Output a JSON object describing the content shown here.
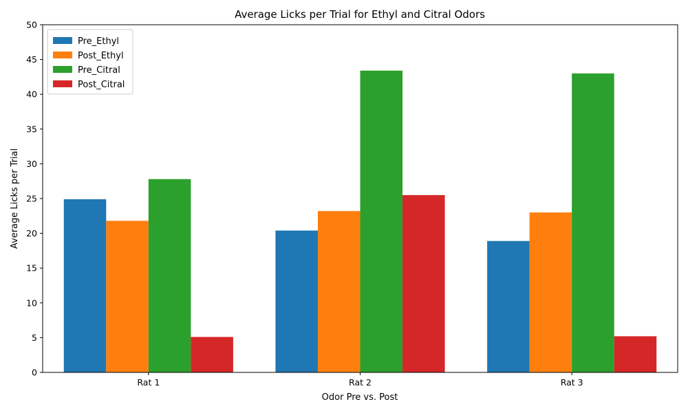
{
  "chart_data": {
    "type": "bar",
    "title": "Average Licks per Trial for Ethyl and Citral Odors",
    "xlabel": "Odor Pre vs. Post",
    "ylabel": "Average Licks per Trial",
    "categories": [
      "Rat 1",
      "Rat 2",
      "Rat 3"
    ],
    "series": [
      {
        "name": "Pre_Ethyl",
        "color": "#1f77b4",
        "values": [
          24.9,
          20.4,
          18.9
        ]
      },
      {
        "name": "Post_Ethyl",
        "color": "#ff7f0e",
        "values": [
          21.8,
          23.2,
          23.0
        ]
      },
      {
        "name": "Pre_Citral",
        "color": "#2ca02c",
        "values": [
          27.8,
          43.4,
          43.0
        ]
      },
      {
        "name": "Post_Citral",
        "color": "#d62728",
        "values": [
          5.1,
          25.5,
          5.2
        ]
      }
    ],
    "ylim": [
      0,
      50
    ],
    "yticks": [
      0,
      5,
      10,
      15,
      20,
      25,
      30,
      35,
      40,
      45,
      50
    ],
    "grid": false,
    "legend_position": "top-left"
  }
}
